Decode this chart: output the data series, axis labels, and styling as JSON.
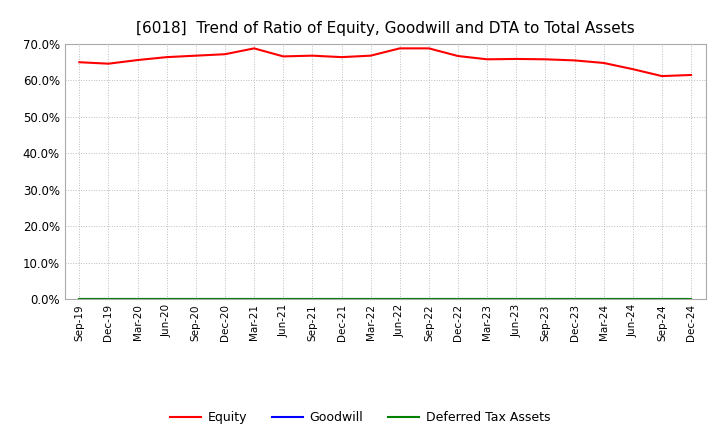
{
  "title": "[6018]  Trend of Ratio of Equity, Goodwill and DTA to Total Assets",
  "x_labels": [
    "Sep-19",
    "Dec-19",
    "Mar-20",
    "Jun-20",
    "Sep-20",
    "Dec-20",
    "Mar-21",
    "Jun-21",
    "Sep-21",
    "Dec-21",
    "Mar-22",
    "Jun-22",
    "Sep-22",
    "Dec-22",
    "Mar-23",
    "Jun-23",
    "Sep-23",
    "Dec-23",
    "Mar-24",
    "Jun-24",
    "Sep-24",
    "Dec-24"
  ],
  "equity": [
    0.65,
    0.646,
    0.656,
    0.664,
    0.668,
    0.672,
    0.688,
    0.666,
    0.668,
    0.664,
    0.668,
    0.688,
    0.688,
    0.667,
    0.658,
    0.659,
    0.658,
    0.655,
    0.648,
    0.631,
    0.612,
    0.615
  ],
  "goodwill": [
    0.0,
    0.0,
    0.0,
    0.0,
    0.0,
    0.0,
    0.0,
    0.0,
    0.0,
    0.0,
    0.0,
    0.0,
    0.0,
    0.0,
    0.0,
    0.0,
    0.0,
    0.0,
    0.0,
    0.0,
    0.0,
    0.0
  ],
  "dta": [
    0.0,
    0.0,
    0.0,
    0.0,
    0.0,
    0.0,
    0.0,
    0.0,
    0.0,
    0.0,
    0.0,
    0.0,
    0.0,
    0.0,
    0.0,
    0.0,
    0.0,
    0.0,
    0.0,
    0.0,
    0.0,
    0.0
  ],
  "equity_color": "#FF0000",
  "goodwill_color": "#0000FF",
  "dta_color": "#008000",
  "ylim": [
    0.0,
    0.7
  ],
  "yticks": [
    0.0,
    0.1,
    0.2,
    0.3,
    0.4,
    0.5,
    0.6,
    0.7
  ],
  "background_color": "#FFFFFF",
  "plot_bg_color": "#FFFFFF",
  "grid_color": "#BBBBBB",
  "title_fontsize": 11,
  "legend_labels": [
    "Equity",
    "Goodwill",
    "Deferred Tax Assets"
  ]
}
